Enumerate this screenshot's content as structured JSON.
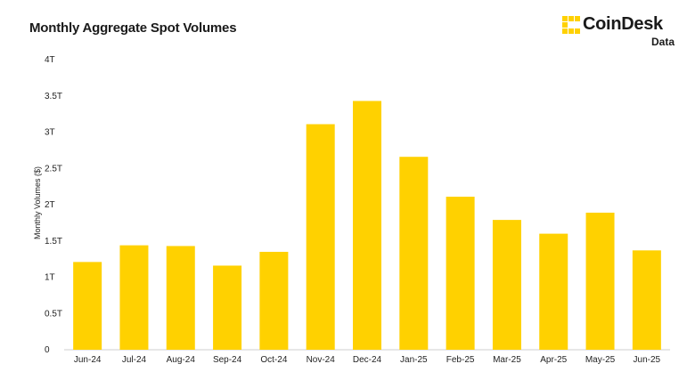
{
  "title": "Monthly Aggregate Spot Volumes",
  "logo": {
    "name": "CoinDesk",
    "sub": "Data",
    "icon": "coindesk-mark-icon",
    "color": "#FFD100"
  },
  "chart_data": {
    "type": "bar",
    "title": "Monthly Aggregate Spot Volumes",
    "xlabel": "",
    "ylabel": "Monthly Volumes ($)",
    "categories": [
      "Jun-24",
      "Jul-24",
      "Aug-24",
      "Sep-24",
      "Oct-24",
      "Nov-24",
      "Dec-24",
      "Jan-25",
      "Feb-25",
      "Mar-25",
      "Apr-25",
      "May-25",
      "Jun-25"
    ],
    "values": [
      1.21,
      1.44,
      1.43,
      1.16,
      1.35,
      3.11,
      3.43,
      2.66,
      2.11,
      1.79,
      1.6,
      1.89,
      1.37
    ],
    "unit": "T",
    "ylim": [
      0,
      4
    ],
    "yticks": [
      0,
      0.5,
      1,
      1.5,
      2,
      2.5,
      3,
      3.5,
      4
    ],
    "ytick_labels": [
      "0",
      "0.5T",
      "1T",
      "1.5T",
      "2T",
      "2.5T",
      "3T",
      "3.5T",
      "4T"
    ],
    "bar_color": "#FFD100",
    "grid": false,
    "legend": "none"
  }
}
